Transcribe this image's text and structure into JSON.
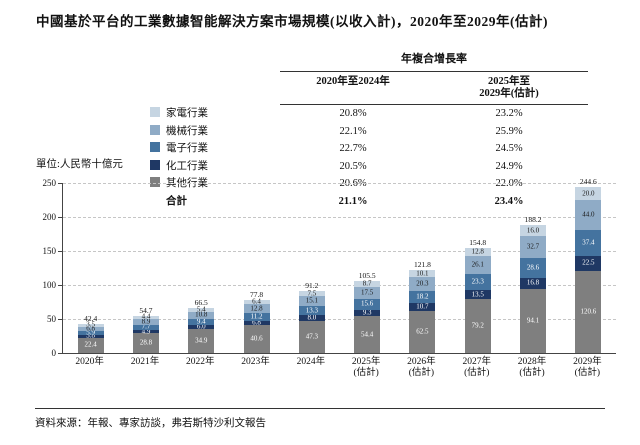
{
  "title": "中國基於平台的工業數據智能解決方案市場規模(以收入計)，2020年至2029年(估計)",
  "unit_label": "單位:人民幣十億元",
  "source": "資料來源：年報、專家訪談，弗若斯特沙利文報告",
  "cagr_table": {
    "title": "年複合增長率",
    "col1_header": "2020年至2024年",
    "col2_header": "2025年至\n2029年(估計)",
    "rows": [
      {
        "label": "家電行業",
        "color": "#c6d5e2",
        "c1": "20.8%",
        "c2": "23.2%"
      },
      {
        "label": "機械行業",
        "color": "#8fabc6",
        "c1": "22.1%",
        "c2": "25.9%"
      },
      {
        "label": "電子行業",
        "color": "#44739f",
        "c1": "22.7%",
        "c2": "24.5%"
      },
      {
        "label": "化工行業",
        "color": "#1f3864",
        "c1": "20.5%",
        "c2": "24.9%"
      },
      {
        "label": "其他行業",
        "color": "#7f7f7f",
        "c1": "20.6%",
        "c2": "22.0%"
      },
      {
        "label": "合計",
        "color": null,
        "c1": "21.1%",
        "c2": "23.4%"
      }
    ]
  },
  "chart_data": {
    "type": "bar",
    "subtype": "stacked",
    "title": "中國基於平台的工業數據智能解決方案市場規模(以收入計)，2020年至2029年(估計)",
    "ylabel": "單位:人民幣十億元",
    "ylim": [
      0,
      250
    ],
    "yticks": [
      0,
      50,
      100,
      150,
      200,
      250
    ],
    "grid": "horizontal-dashed",
    "legend_position": "top-left-of-table",
    "categories": [
      "2020年",
      "2021年",
      "2022年",
      "2023年",
      "2024年",
      "2025年\n(估計)",
      "2026年\n(估計)",
      "2027年\n(估計)",
      "2028年\n(估計)",
      "2029年\n(估計)"
    ],
    "series": [
      {
        "name": "其他行業",
        "color": "#7f7f7f",
        "text_color": "#ffffff",
        "values": [
          22.4,
          28.8,
          34.9,
          40.6,
          47.3,
          54.4,
          62.5,
          79.2,
          94.1,
          120.6
        ]
      },
      {
        "name": "化工行業",
        "color": "#1f3864",
        "text_color": "#ffffff",
        "values": [
          3.8,
          4.9,
          6.0,
          6.8,
          8.0,
          9.3,
          10.7,
          13.5,
          16.8,
          22.5
        ]
      },
      {
        "name": "電子行業",
        "color": "#44739f",
        "text_color": "#ffffff",
        "values": [
          5.9,
          7.7,
          9.4,
          11.2,
          13.3,
          15.6,
          18.2,
          23.3,
          28.6,
          37.4
        ]
      },
      {
        "name": "機械行業",
        "color": "#8fabc6",
        "text_color": "#1a1a1a",
        "values": [
          6.8,
          8.9,
          10.8,
          12.8,
          15.1,
          17.5,
          20.3,
          26.1,
          32.7,
          44.0
        ]
      },
      {
        "name": "家電行業",
        "color": "#c6d5e2",
        "text_color": "#1a1a1a",
        "values": [
          3.5,
          4.4,
          5.4,
          6.4,
          7.5,
          8.7,
          10.1,
          12.8,
          16.0,
          20.0
        ]
      }
    ],
    "totals": [
      42.4,
      54.7,
      66.5,
      77.8,
      91.2,
      105.5,
      121.8,
      154.8,
      188.2,
      244.6
    ]
  }
}
